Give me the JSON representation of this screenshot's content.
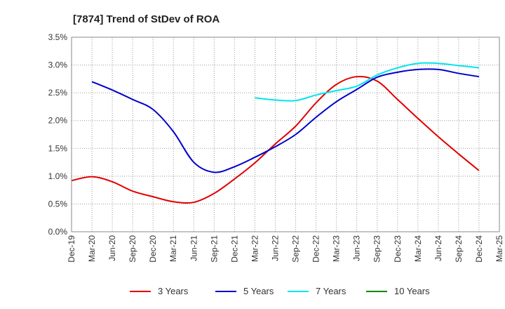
{
  "chart_data": {
    "type": "line",
    "title": "[7874]  Trend of StDev of ROA",
    "xlabel": "",
    "ylabel": "",
    "x": [
      "Dec-19",
      "Mar-20",
      "Jun-20",
      "Sep-20",
      "Dec-20",
      "Mar-21",
      "Jun-21",
      "Sep-21",
      "Dec-21",
      "Mar-22",
      "Jun-22",
      "Sep-22",
      "Dec-22",
      "Mar-23",
      "Jun-23",
      "Sep-23",
      "Dec-23",
      "Mar-24",
      "Jun-24",
      "Sep-24",
      "Dec-24",
      "Mar-25"
    ],
    "ylim": [
      0,
      3.5
    ],
    "yticks": [
      "0.0%",
      "0.5%",
      "1.0%",
      "1.5%",
      "2.0%",
      "2.5%",
      "3.0%",
      "3.5%"
    ],
    "grid": true,
    "legend_position": "bottom",
    "series": [
      {
        "name": "3 Years",
        "color": "#e00000",
        "values": [
          0.92,
          0.99,
          0.9,
          0.73,
          0.63,
          0.54,
          0.53,
          0.69,
          0.95,
          1.24,
          1.58,
          1.9,
          2.32,
          2.65,
          2.79,
          2.71,
          2.38,
          2.04,
          1.71,
          1.4,
          1.1,
          null
        ]
      },
      {
        "name": "5 Years",
        "color": "#0000cc",
        "values": [
          null,
          2.7,
          2.55,
          2.38,
          2.2,
          1.8,
          1.25,
          1.07,
          1.17,
          1.34,
          1.53,
          1.75,
          2.06,
          2.34,
          2.56,
          2.78,
          2.87,
          2.92,
          2.92,
          2.85,
          2.79,
          null
        ]
      },
      {
        "name": "7 Years",
        "color": "#00e5ee",
        "values": [
          null,
          null,
          null,
          null,
          null,
          null,
          null,
          null,
          null,
          2.41,
          2.37,
          2.36,
          2.46,
          2.54,
          2.62,
          2.82,
          2.95,
          3.03,
          3.03,
          2.99,
          2.95,
          null
        ]
      },
      {
        "name": "10 Years",
        "color": "#008800",
        "values": [
          null,
          null,
          null,
          null,
          null,
          null,
          null,
          null,
          null,
          null,
          null,
          null,
          null,
          null,
          null,
          null,
          null,
          null,
          null,
          null,
          null,
          null
        ]
      }
    ]
  }
}
